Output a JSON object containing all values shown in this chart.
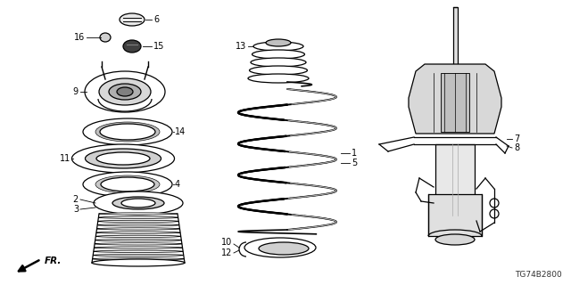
{
  "background_color": "#ffffff",
  "diagram_code": "TG74B2800",
  "label_fs": 7.0,
  "lw": 0.9
}
